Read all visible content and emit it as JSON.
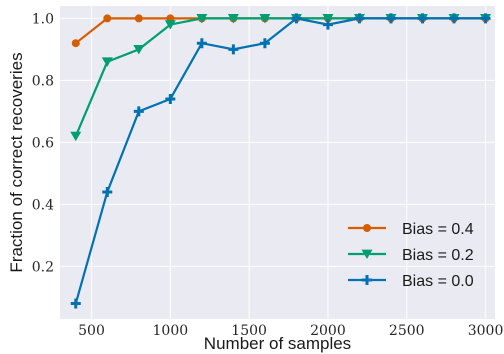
{
  "chart_data": {
    "type": "line",
    "title": "",
    "xlabel": "Number of samples",
    "ylabel": "Fraction of correct recoveries",
    "xlim": [
      300,
      3060
    ],
    "ylim": [
      0.03,
      1.04
    ],
    "xticks": [
      500,
      1000,
      1500,
      2000,
      2500,
      3000
    ],
    "yticks": [
      0.2,
      0.4,
      0.6,
      0.8,
      1.0
    ],
    "xtick_labels": [
      "500",
      "1000",
      "1500",
      "2000",
      "2500",
      "3000"
    ],
    "ytick_labels": [
      "0.2",
      "0.4",
      "0.6",
      "0.8",
      "1.0"
    ],
    "grid": true,
    "legend_position": "bottom-right",
    "x": [
      400,
      600,
      800,
      1000,
      1200,
      1400,
      1600,
      1800,
      2000,
      2200,
      2400,
      2600,
      2800,
      3000
    ],
    "series": [
      {
        "name": "Bias = 0.4",
        "color": "#d55e00",
        "marker": "circle",
        "values": [
          0.92,
          1.0,
          1.0,
          1.0,
          1.0,
          1.0,
          1.0,
          1.0,
          1.0,
          1.0,
          1.0,
          1.0,
          1.0,
          1.0
        ]
      },
      {
        "name": "Bias = 0.2",
        "color": "#009e73",
        "marker": "triangle-down",
        "values": [
          0.62,
          0.86,
          0.9,
          0.98,
          1.0,
          1.0,
          1.0,
          1.0,
          1.0,
          1.0,
          1.0,
          1.0,
          1.0,
          1.0
        ]
      },
      {
        "name": "Bias = 0.0",
        "color": "#0072b2",
        "marker": "plus",
        "values": [
          0.08,
          0.44,
          0.7,
          0.74,
          0.92,
          0.9,
          0.92,
          1.0,
          0.98,
          1.0,
          1.0,
          1.0,
          1.0,
          1.0
        ]
      }
    ]
  }
}
